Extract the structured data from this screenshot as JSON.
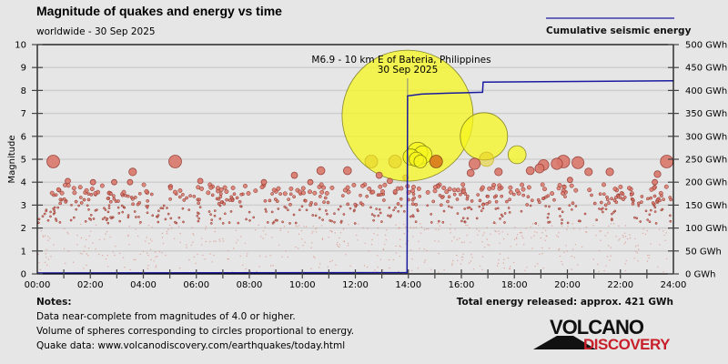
{
  "chart_data": {
    "type": "scatter",
    "title": "Magnitude of quakes and energy vs time",
    "subtitle": "worldwide - 30 Sep 2025",
    "xlabel": "",
    "ylabel": "Magnitude",
    "y2label": "",
    "xlim_hours": [
      0,
      24
    ],
    "ylim": [
      0,
      10
    ],
    "y2lim_gwh": [
      0,
      500
    ],
    "grid": true,
    "legend": {
      "position": "top-right",
      "entries": [
        {
          "label": "Cumulative seismic energy",
          "color": "#1a1aa0"
        }
      ]
    },
    "x_ticks": [
      "00:00",
      "02:00",
      "04:00",
      "06:00",
      "08:00",
      "10:00",
      "12:00",
      "14:00",
      "16:00",
      "18:00",
      "20:00",
      "22:00",
      "24:00"
    ],
    "y_ticks": [
      "0",
      "1",
      "2",
      "3",
      "4",
      "5",
      "6",
      "7",
      "8",
      "9",
      "10"
    ],
    "y2_ticks": [
      "0 GWh",
      "50 GWh",
      "100 GWh",
      "150 GWh",
      "200 GWh",
      "250 GWh",
      "300 GWh",
      "350 GWh",
      "400 GWh",
      "450 GWh",
      "500 GWh"
    ],
    "annotation": {
      "line1": "M6.9 - 10 km E of Bateria, Philippines",
      "line2": "30 Sep 2025",
      "time_h": 13.97,
      "magnitude": 6.9
    },
    "cumulative_energy_gwh": {
      "t_h": [
        0,
        13.95,
        13.97,
        14.5,
        15.5,
        16.8,
        16.82,
        19,
        24
      ],
      "values": [
        2,
        3,
        388,
        392,
        394,
        396,
        418,
        419,
        421
      ]
    },
    "notable_quakes": [
      {
        "t_h": 13.97,
        "mag": 6.9,
        "color": "yellow"
      },
      {
        "t_h": 16.85,
        "mag": 6.0,
        "color": "yellow"
      },
      {
        "t_h": 18.1,
        "mag": 5.2,
        "color": "yellow"
      },
      {
        "t_h": 14.35,
        "mag": 5.3,
        "color": "yellow"
      },
      {
        "t_h": 14.55,
        "mag": 5.2,
        "color": "yellow"
      },
      {
        "t_h": 14.1,
        "mag": 5.1,
        "color": "yellow"
      },
      {
        "t_h": 14.3,
        "mag": 5.0,
        "color": "yellow"
      },
      {
        "t_h": 14.45,
        "mag": 4.9,
        "color": "yellow"
      },
      {
        "t_h": 12.6,
        "mag": 4.9,
        "color": "yellow-faded"
      },
      {
        "t_h": 13.5,
        "mag": 4.9,
        "color": "yellow-faded"
      },
      {
        "t_h": 16.95,
        "mag": 5.0,
        "color": "yellow-faded"
      },
      {
        "t_h": 13.9,
        "mag": 4.2,
        "color": "yellow-faded"
      },
      {
        "t_h": 15.05,
        "mag": 4.9,
        "color": "orange"
      },
      {
        "t_h": 0.6,
        "mag": 4.9,
        "color": "red"
      },
      {
        "t_h": 5.2,
        "mag": 4.9,
        "color": "red"
      },
      {
        "t_h": 3.6,
        "mag": 4.45,
        "color": "red"
      },
      {
        "t_h": 10.7,
        "mag": 4.5,
        "color": "red"
      },
      {
        "t_h": 11.7,
        "mag": 4.5,
        "color": "red"
      },
      {
        "t_h": 16.5,
        "mag": 4.8,
        "color": "red"
      },
      {
        "t_h": 16.35,
        "mag": 4.4,
        "color": "red"
      },
      {
        "t_h": 17.4,
        "mag": 4.45,
        "color": "red"
      },
      {
        "t_h": 18.6,
        "mag": 4.5,
        "color": "red"
      },
      {
        "t_h": 19.1,
        "mag": 4.75,
        "color": "red"
      },
      {
        "t_h": 19.6,
        "mag": 4.8,
        "color": "red"
      },
      {
        "t_h": 19.85,
        "mag": 4.9,
        "color": "red"
      },
      {
        "t_h": 20.4,
        "mag": 4.85,
        "color": "red"
      },
      {
        "t_h": 20.8,
        "mag": 4.45,
        "color": "red"
      },
      {
        "t_h": 21.6,
        "mag": 4.45,
        "color": "red"
      },
      {
        "t_h": 23.4,
        "mag": 4.35,
        "color": "red"
      },
      {
        "t_h": 23.75,
        "mag": 4.9,
        "color": "red"
      },
      {
        "t_h": 23.3,
        "mag": 4.0,
        "color": "red"
      },
      {
        "t_h": 18.95,
        "mag": 4.6,
        "color": "red"
      },
      {
        "t_h": 20.1,
        "mag": 4.1,
        "color": "red"
      },
      {
        "t_h": 1.15,
        "mag": 4.05,
        "color": "red"
      },
      {
        "t_h": 2.1,
        "mag": 4.0,
        "color": "red"
      },
      {
        "t_h": 2.9,
        "mag": 4.0,
        "color": "red"
      },
      {
        "t_h": 3.5,
        "mag": 4.0,
        "color": "red"
      },
      {
        "t_h": 6.15,
        "mag": 4.05,
        "color": "red"
      },
      {
        "t_h": 8.55,
        "mag": 4.0,
        "color": "red"
      },
      {
        "t_h": 9.7,
        "mag": 4.3,
        "color": "red"
      },
      {
        "t_h": 10.3,
        "mag": 4.0,
        "color": "red"
      },
      {
        "t_h": 12.9,
        "mag": 4.3,
        "color": "red"
      },
      {
        "t_h": 13.3,
        "mag": 4.05,
        "color": "red"
      }
    ],
    "minor_quakes": {
      "note": "dense cloud of small events M0-4",
      "count_approx": 1100,
      "mag_range": [
        0,
        4
      ]
    }
  },
  "notes": {
    "title": "Notes:",
    "lines": [
      "Data near-complete from magnitudes of 4.0 or higher.",
      "Volume of spheres corresponding to circles proportional to energy.",
      "Quake data: www.volcanodiscovery.com/earthquakes/today.html"
    ]
  },
  "total_energy": "Total energy released: approx. 421 GWh",
  "logo": {
    "top": "VOLCANO",
    "bottom": "DISCOVERY"
  },
  "colors": {
    "background": "#e6e6e6",
    "energy_line": "#1a1aa0",
    "quake_red": "#d9776a",
    "quake_red_stroke": "#8a3028",
    "quake_yellow": "#f5f51e",
    "quake_orange": "#d9781a",
    "logo_red": "#c8202a"
  }
}
